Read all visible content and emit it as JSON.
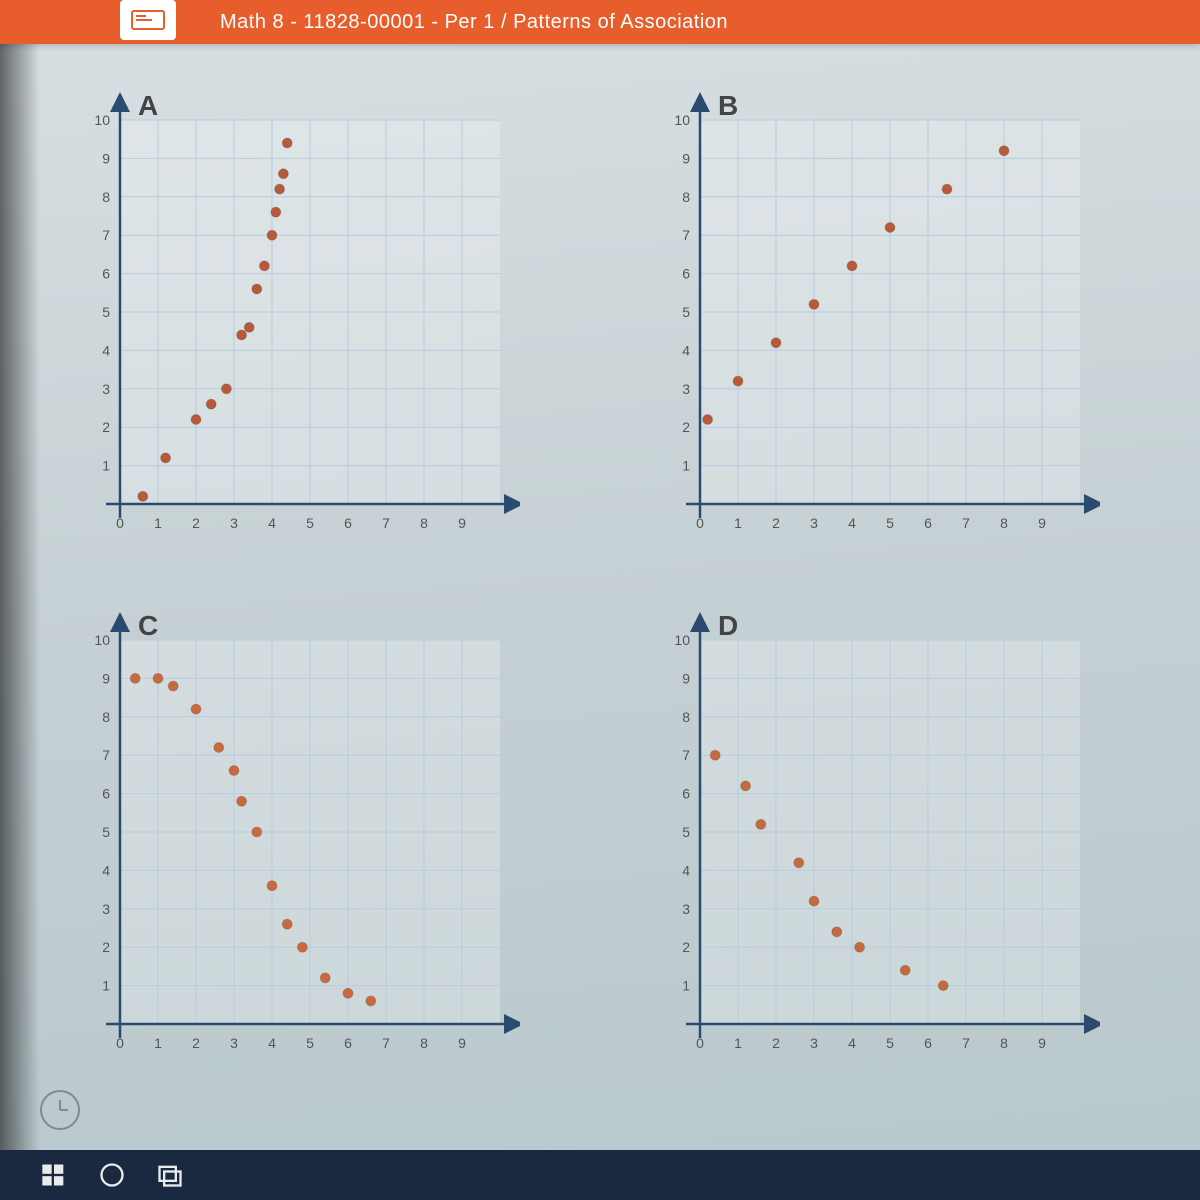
{
  "header": {
    "title": "Math 8 - 11828-00001 - Per 1 / Patterns of Association"
  },
  "axis": {
    "xmin": 0,
    "xmax": 10,
    "ymin": 0,
    "ymax": 10,
    "xticks": [
      0,
      1,
      2,
      3,
      4,
      5,
      6,
      7,
      8,
      9
    ],
    "yticks": [
      0,
      1,
      2,
      3,
      4,
      5,
      6,
      7,
      8,
      9,
      10
    ],
    "tick_fontsize": 14,
    "label_color": "#555",
    "grid_color": "#b8cce0",
    "axis_color": "#2a4a70",
    "background": "#eef3f6"
  },
  "charts": [
    {
      "id": "A",
      "label": "A",
      "point_color": "#b85a3a",
      "point_radius": 5,
      "points": [
        [
          0.6,
          0.2
        ],
        [
          1.2,
          1.2
        ],
        [
          2.0,
          2.2
        ],
        [
          2.4,
          2.6
        ],
        [
          2.8,
          3.0
        ],
        [
          3.2,
          4.4
        ],
        [
          3.4,
          4.6
        ],
        [
          3.6,
          5.6
        ],
        [
          3.8,
          6.2
        ],
        [
          4.0,
          7.0
        ],
        [
          4.1,
          7.6
        ],
        [
          4.2,
          8.2
        ],
        [
          4.3,
          8.6
        ],
        [
          4.4,
          9.4
        ]
      ]
    },
    {
      "id": "B",
      "label": "B",
      "point_color": "#b85a3a",
      "point_radius": 5,
      "points": [
        [
          0.2,
          2.2
        ],
        [
          1.0,
          3.2
        ],
        [
          2.0,
          4.2
        ],
        [
          3.0,
          5.2
        ],
        [
          4.0,
          6.2
        ],
        [
          5.0,
          7.2
        ],
        [
          6.5,
          8.2
        ],
        [
          8.0,
          9.2
        ]
      ]
    },
    {
      "id": "C",
      "label": "C",
      "point_color": "#c96a3e",
      "point_radius": 5,
      "points": [
        [
          0.4,
          9.0
        ],
        [
          1.0,
          9.0
        ],
        [
          1.4,
          8.8
        ],
        [
          2.0,
          8.2
        ],
        [
          2.6,
          7.2
        ],
        [
          3.0,
          6.6
        ],
        [
          3.2,
          5.8
        ],
        [
          3.6,
          5.0
        ],
        [
          4.0,
          3.6
        ],
        [
          4.4,
          2.6
        ],
        [
          4.8,
          2.0
        ],
        [
          5.4,
          1.2
        ],
        [
          6.0,
          0.8
        ],
        [
          6.6,
          0.6
        ]
      ]
    },
    {
      "id": "D",
      "label": "D",
      "point_color": "#c46a3e",
      "point_radius": 5,
      "points": [
        [
          0.4,
          7.0
        ],
        [
          1.2,
          6.2
        ],
        [
          1.6,
          5.2
        ],
        [
          2.6,
          4.2
        ],
        [
          3.0,
          3.2
        ],
        [
          3.6,
          2.4
        ],
        [
          4.2,
          2.0
        ],
        [
          5.4,
          1.4
        ],
        [
          6.4,
          1.0
        ]
      ]
    }
  ]
}
